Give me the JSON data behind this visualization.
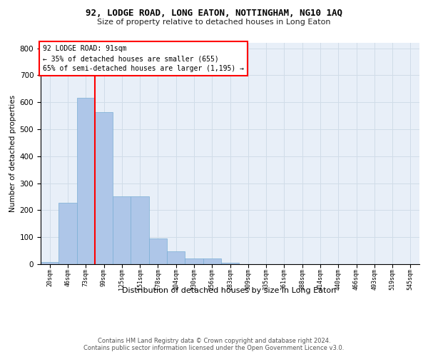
{
  "title": "92, LODGE ROAD, LONG EATON, NOTTINGHAM, NG10 1AQ",
  "subtitle": "Size of property relative to detached houses in Long Eaton",
  "xlabel": "Distribution of detached houses by size in Long Eaton",
  "ylabel": "Number of detached properties",
  "annotation_line1": "92 LODGE ROAD: 91sqm",
  "annotation_line2": "← 35% of detached houses are smaller (655)",
  "annotation_line3": "65% of semi-detached houses are larger (1,195) →",
  "footer1": "Contains HM Land Registry data © Crown copyright and database right 2024.",
  "footer2": "Contains public sector information licensed under the Open Government Licence v3.0.",
  "bar_values": [
    8,
    228,
    616,
    563,
    252,
    252,
    95,
    48,
    22,
    22,
    5,
    0,
    0,
    0,
    0,
    0,
    0,
    0,
    0,
    0,
    0
  ],
  "bar_labels": [
    "20sqm",
    "46sqm",
    "73sqm",
    "99sqm",
    "125sqm",
    "151sqm",
    "178sqm",
    "204sqm",
    "230sqm",
    "256sqm",
    "283sqm",
    "309sqm",
    "335sqm",
    "361sqm",
    "388sqm",
    "414sqm",
    "440sqm",
    "466sqm",
    "493sqm",
    "519sqm",
    "545sqm"
  ],
  "bar_color": "#aec6e8",
  "bar_edge_color": "#7aaed4",
  "grid_color": "#d0dce8",
  "bg_color": "#e8eff8",
  "vline_color": "red",
  "vline_position": 2.5,
  "ylim": [
    0,
    820
  ],
  "yticks": [
    0,
    100,
    200,
    300,
    400,
    500,
    600,
    700,
    800
  ],
  "annotation_box_color": "white",
  "annotation_box_edge": "red"
}
